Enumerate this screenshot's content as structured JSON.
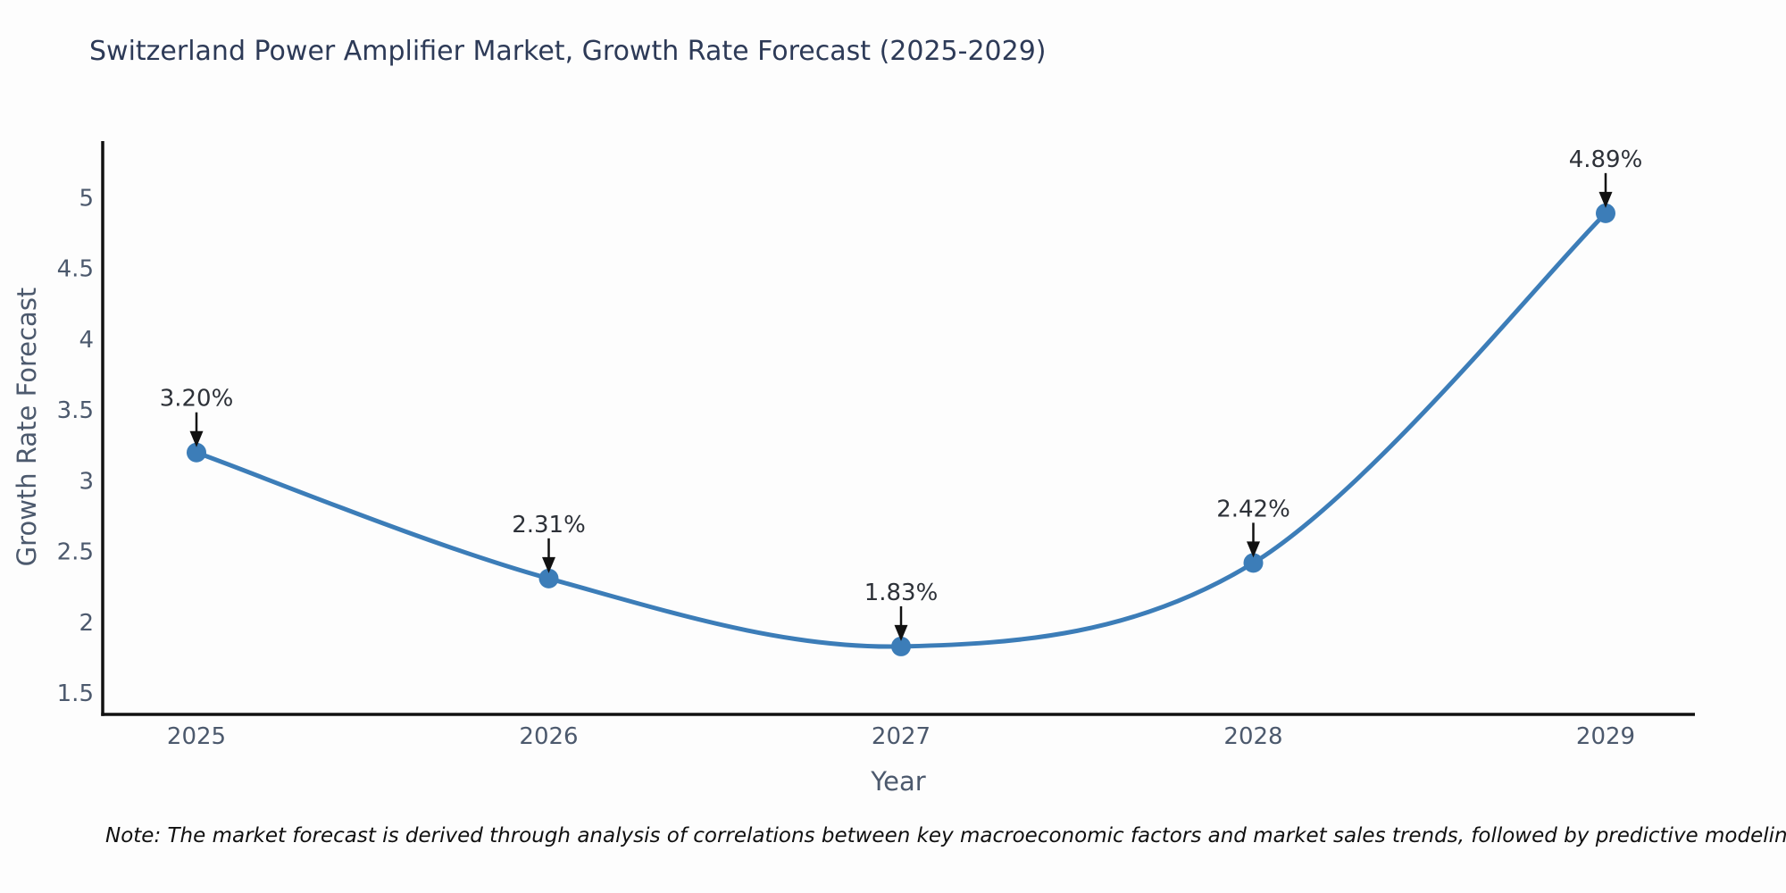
{
  "title": "Switzerland Power Amplifier Market, Growth Rate Forecast (2025-2029)",
  "note": "Note: The market forecast is derived through analysis of correlations between key macroeconomic factors and market sales trends, followed by predictive modeling to project future sales.",
  "colors": {
    "line": "#3c7db8",
    "marker": "#3c7db8",
    "axis": "#111111",
    "tick_text": "#4c596d",
    "title_text": "#2d3a57",
    "annotation_text": "#2d3138",
    "annotation_arrow": "#111111",
    "note_text": "#101010",
    "background": "#fdfdfd"
  },
  "chart_data": {
    "type": "line",
    "x": [
      "2025",
      "2026",
      "2027",
      "2028",
      "2029"
    ],
    "values": [
      3.2,
      2.31,
      1.83,
      2.42,
      4.89
    ],
    "point_labels": [
      "3.20%",
      "2.31%",
      "1.83%",
      "2.42%",
      "4.89%"
    ],
    "title": "Switzerland Power Amplifier Market, Growth Rate Forecast (2025-2029)",
    "xlabel": "Year",
    "ylabel": "Growth Rate Forecast",
    "yticks": [
      1.5,
      2,
      2.5,
      3,
      3.5,
      4,
      4.5,
      5
    ],
    "ylim": [
      1.35,
      5.4
    ],
    "grid": false,
    "legend": "none",
    "line_shape": "spline",
    "annotation_style": "arrow-down"
  }
}
